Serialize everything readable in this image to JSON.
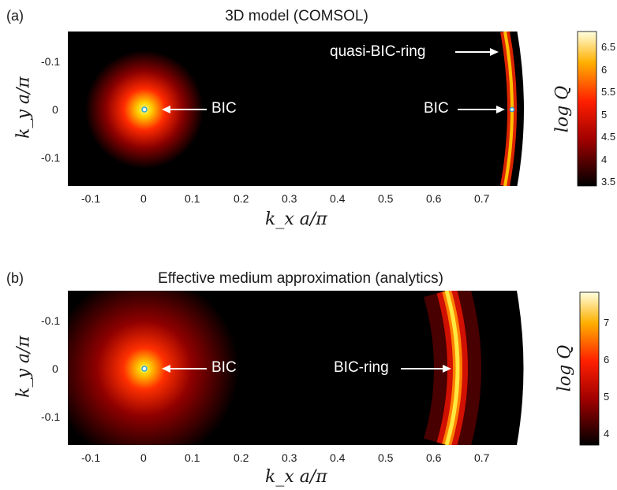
{
  "figure": {
    "panels": [
      {
        "label": "(a)",
        "title": "3D model  (COMSOL)",
        "xlabel": "k_x a/π",
        "ylabel": "k_y a/π",
        "colorbar_label": "log Q",
        "colorbar_ticks": [
          "6.5",
          "6",
          "5.5",
          "5",
          "4.5",
          "4",
          "3.5"
        ],
        "xticks": [
          "-0.1",
          "0",
          "0.1",
          "0.2",
          "0.3",
          "0.4",
          "0.5",
          "0.6",
          "0.7"
        ],
        "yticks": [
          "-0.1",
          "0",
          "-0.1"
        ],
        "annotations": [
          "BIC",
          "quasi-BIC-ring",
          "BIC"
        ]
      },
      {
        "label": "(b)",
        "title": "Effective medium approximation (analytics)",
        "xlabel": "k_x a/π",
        "ylabel": "k_y a/π",
        "colorbar_label": "log Q",
        "colorbar_ticks": [
          "7",
          "6",
          "5",
          "4"
        ],
        "xticks": [
          "-0.1",
          "0",
          "0.1",
          "0.2",
          "0.3",
          "0.4",
          "0.5",
          "0.6",
          "0.7"
        ],
        "yticks": [
          "-0.1",
          "0",
          "-0.1"
        ],
        "annotations": [
          "BIC",
          "BIC-ring"
        ]
      }
    ]
  },
  "chart_data": [
    {
      "type": "heatmap",
      "title": "3D model  (COMSOL)",
      "xlabel": "k_x a/π",
      "ylabel": "k_y a/π",
      "xlim": [
        -0.16,
        0.78
      ],
      "ylim": [
        -0.16,
        0.16
      ],
      "colorbar": {
        "label": "log Q",
        "range": [
          3.5,
          6.7
        ],
        "colormap": "hot"
      },
      "features": [
        {
          "label": "BIC",
          "x": 0.0,
          "y": 0.0
        },
        {
          "label": "BIC",
          "x": 0.755,
          "y": 0.0
        },
        {
          "label": "quasi-BIC-ring",
          "x": 0.74,
          "y": -0.13
        }
      ]
    },
    {
      "type": "heatmap",
      "title": "Effective medium approximation (analytics)",
      "xlabel": "k_x a/π",
      "ylabel": "k_y a/π",
      "xlim": [
        -0.16,
        0.78
      ],
      "ylim": [
        -0.16,
        0.16
      ],
      "colorbar": {
        "label": "log Q",
        "range": [
          3.5,
          7.5
        ],
        "colormap": "hot"
      },
      "features": [
        {
          "label": "BIC",
          "x": 0.0,
          "y": 0.0
        },
        {
          "label": "BIC-ring",
          "x": 0.64,
          "y": 0.0
        }
      ]
    }
  ]
}
